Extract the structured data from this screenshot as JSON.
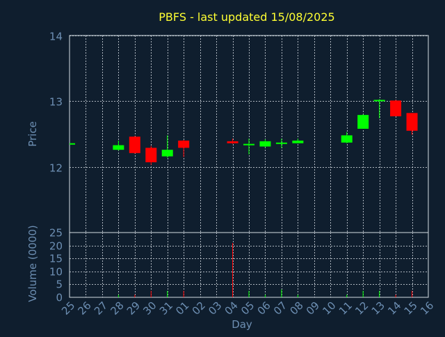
{
  "chart_data": {
    "type": "candlestick",
    "title": "PBFS - last updated 15/08/2025",
    "colors": {
      "background": "#0f1e2e",
      "title": "#ffff33",
      "axis_text": "#6d8fb3",
      "grid": "#d6dde4",
      "up": "#00ff00",
      "down": "#ff0000",
      "wick_up": "#00ff00",
      "wick_down": "#ff0000"
    },
    "grid": true,
    "x_tick_labels": [
      "25",
      "26",
      "27",
      "28",
      "29",
      "30",
      "31",
      "01",
      "02",
      "03",
      "04",
      "05",
      "06",
      "07",
      "08",
      "09",
      "10",
      "11",
      "12",
      "13",
      "14",
      "15",
      "16"
    ],
    "xlabel": "Day",
    "price": {
      "ylabel": "Price",
      "ylim": [
        11.0,
        14.0
      ],
      "yticks": [
        12,
        13,
        14
      ],
      "candles": [
        {
          "day": "25",
          "open": 12.36,
          "close": 12.36,
          "high": 12.36,
          "low": 12.36
        },
        {
          "day": "28",
          "open": 12.26,
          "close": 12.33,
          "high": 12.4,
          "low": 12.25
        },
        {
          "day": "29",
          "open": 12.46,
          "close": 12.21,
          "high": 12.47,
          "low": 12.2
        },
        {
          "day": "30",
          "open": 12.29,
          "close": 12.07,
          "high": 12.32,
          "low": 12.03
        },
        {
          "day": "31",
          "open": 12.16,
          "close": 12.26,
          "high": 12.48,
          "low": 12.14
        },
        {
          "day": "01",
          "open": 12.4,
          "close": 12.29,
          "high": 12.41,
          "low": 12.15
        },
        {
          "day": "04",
          "open": 12.39,
          "close": 12.36,
          "high": 12.43,
          "low": 12.35
        },
        {
          "day": "05",
          "open": 12.34,
          "close": 12.35,
          "high": 12.43,
          "low": 12.19
        },
        {
          "day": "06",
          "open": 12.31,
          "close": 12.39,
          "high": 12.42,
          "low": 12.3
        },
        {
          "day": "07",
          "open": 12.35,
          "close": 12.37,
          "high": 12.43,
          "low": 12.29
        },
        {
          "day": "08",
          "open": 12.36,
          "close": 12.4,
          "high": 12.43,
          "low": 12.36
        },
        {
          "day": "11",
          "open": 12.37,
          "close": 12.48,
          "high": 12.53,
          "low": 12.36
        },
        {
          "day": "12",
          "open": 12.58,
          "close": 12.79,
          "high": 12.8,
          "low": 12.58
        },
        {
          "day": "13",
          "open": 13.01,
          "close": 13.02,
          "high": 13.03,
          "low": 12.74
        },
        {
          "day": "14",
          "open": 13.01,
          "close": 12.77,
          "high": 13.02,
          "low": 12.77
        },
        {
          "day": "15",
          "open": 12.82,
          "close": 12.55,
          "high": 12.82,
          "low": 12.49
        }
      ]
    },
    "volume": {
      "ylabel": "Volume (0000)",
      "ylim": [
        0,
        25
      ],
      "yticks": [
        0,
        5,
        10,
        15,
        20,
        25
      ],
      "bars": [
        {
          "day": "28",
          "value": 1,
          "dir": "up"
        },
        {
          "day": "29",
          "value": 1,
          "dir": "down"
        },
        {
          "day": "30",
          "value": 2.5,
          "dir": "down"
        },
        {
          "day": "31",
          "value": 2.5,
          "dir": "up"
        },
        {
          "day": "01",
          "value": 2.5,
          "dir": "down"
        },
        {
          "day": "04",
          "value": 21,
          "dir": "down"
        },
        {
          "day": "05",
          "value": 2.5,
          "dir": "up"
        },
        {
          "day": "06",
          "value": 1,
          "dir": "up"
        },
        {
          "day": "07",
          "value": 3,
          "dir": "up"
        },
        {
          "day": "08",
          "value": 1,
          "dir": "up"
        },
        {
          "day": "11",
          "value": 1,
          "dir": "up"
        },
        {
          "day": "12",
          "value": 2.5,
          "dir": "up"
        },
        {
          "day": "13",
          "value": 2.5,
          "dir": "up"
        },
        {
          "day": "14",
          "value": 1,
          "dir": "down"
        },
        {
          "day": "15",
          "value": 2.5,
          "dir": "down"
        }
      ]
    }
  }
}
